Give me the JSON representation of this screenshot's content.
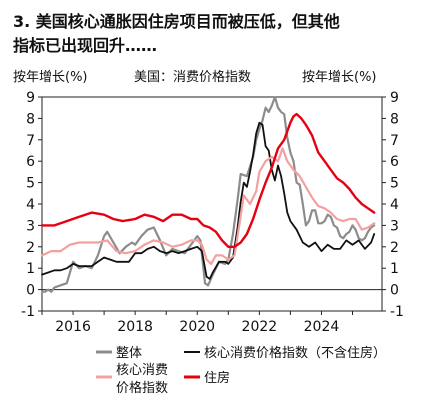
{
  "header": {
    "title_line1": "3. 美国核心通胀因住房项目而被压低，但其他",
    "title_line2": "指标已出现回升……"
  },
  "chart_data": {
    "type": "line",
    "left_axis_label": "按年增长(%)",
    "center_label": "美国：消费价格指数",
    "right_axis_label": "按年增长(%)",
    "xlim": [
      2015.0,
      2025.95
    ],
    "ylim": [
      -1,
      9
    ],
    "yticks": [
      -1,
      0,
      1,
      2,
      3,
      4,
      5,
      6,
      7,
      8,
      9
    ],
    "xticks": [
      2016,
      2018,
      2020,
      2022,
      2024
    ],
    "xtick_labels": [
      "2016",
      "2018",
      "2020",
      "2022",
      "2024"
    ],
    "ytick_labels": [
      "-1",
      "0",
      "1",
      "2",
      "3",
      "4",
      "5",
      "6",
      "7",
      "8",
      "9"
    ],
    "legend_position": "bottom",
    "series": [
      {
        "name": "整体",
        "color": "#8c8c8c",
        "x": [
          2015.0,
          2015.1,
          2015.2,
          2015.3,
          2015.4,
          2015.6,
          2015.8,
          2016.0,
          2016.2,
          2016.4,
          2016.6,
          2016.8,
          2017.0,
          2017.1,
          2017.3,
          2017.5,
          2017.7,
          2017.9,
          2018.0,
          2018.2,
          2018.4,
          2018.6,
          2018.8,
          2019.0,
          2019.2,
          2019.4,
          2019.6,
          2019.8,
          2020.0,
          2020.1,
          2020.25,
          2020.35,
          2020.5,
          2020.7,
          2020.9,
          2021.0,
          2021.15,
          2021.3,
          2021.4,
          2021.6,
          2021.8,
          2021.9,
          2022.0,
          2022.1,
          2022.2,
          2022.3,
          2022.4,
          2022.5,
          2022.6,
          2022.7,
          2022.8,
          2022.9,
          2023.0,
          2023.1,
          2023.2,
          2023.3,
          2023.4,
          2023.5,
          2023.6,
          2023.7,
          2023.8,
          2023.9,
          2024.0,
          2024.1,
          2024.2,
          2024.3,
          2024.4,
          2024.5,
          2024.6,
          2024.7,
          2024.8,
          2024.9,
          2025.0,
          2025.1,
          2025.2,
          2025.3,
          2025.4,
          2025.5,
          2025.6,
          2025.7
        ],
        "values": [
          -0.1,
          -0.1,
          0.0,
          -0.1,
          0.1,
          0.2,
          0.3,
          1.3,
          1.0,
          1.1,
          1.0,
          1.6,
          2.5,
          2.7,
          2.2,
          1.7,
          2.0,
          2.2,
          2.1,
          2.5,
          2.8,
          2.9,
          2.3,
          1.6,
          1.9,
          1.8,
          1.7,
          2.1,
          2.5,
          2.3,
          0.3,
          0.2,
          0.7,
          1.3,
          1.2,
          1.4,
          2.6,
          4.2,
          5.4,
          5.3,
          6.2,
          7.0,
          7.5,
          7.9,
          8.5,
          8.3,
          8.6,
          9.0,
          8.5,
          8.3,
          8.2,
          7.1,
          6.4,
          6.0,
          5.0,
          4.9,
          4.0,
          3.0,
          3.2,
          3.7,
          3.7,
          3.1,
          3.1,
          3.2,
          3.5,
          3.4,
          3.0,
          2.9,
          2.5,
          2.4,
          2.6,
          2.7,
          3.0,
          2.8,
          2.4,
          2.3,
          2.4,
          2.7,
          2.9,
          3.0
        ]
      },
      {
        "name": "核心消费价格指数（不含住房）",
        "color": "#111111",
        "x": [
          2015.0,
          2015.2,
          2015.4,
          2015.6,
          2015.8,
          2016.0,
          2016.2,
          2016.4,
          2016.6,
          2016.8,
          2017.0,
          2017.2,
          2017.4,
          2017.6,
          2017.8,
          2018.0,
          2018.2,
          2018.4,
          2018.6,
          2018.8,
          2019.0,
          2019.2,
          2019.4,
          2019.6,
          2019.8,
          2020.0,
          2020.15,
          2020.3,
          2020.4,
          2020.5,
          2020.7,
          2020.9,
          2021.0,
          2021.15,
          2021.3,
          2021.4,
          2021.5,
          2021.6,
          2021.7,
          2021.8,
          2021.9,
          2022.0,
          2022.1,
          2022.2,
          2022.3,
          2022.4,
          2022.5,
          2022.6,
          2022.7,
          2022.8,
          2022.9,
          2023.0,
          2023.2,
          2023.4,
          2023.6,
          2023.8,
          2024.0,
          2024.2,
          2024.4,
          2024.6,
          2024.8,
          2025.0,
          2025.2,
          2025.4,
          2025.6,
          2025.7
        ],
        "values": [
          0.7,
          0.8,
          0.9,
          0.9,
          1.0,
          1.2,
          1.1,
          1.1,
          1.1,
          1.3,
          1.5,
          1.4,
          1.3,
          1.3,
          1.3,
          1.7,
          1.7,
          1.9,
          2.0,
          1.8,
          1.7,
          1.8,
          1.7,
          1.8,
          1.9,
          2.0,
          1.8,
          0.6,
          0.5,
          0.8,
          1.3,
          1.3,
          1.2,
          1.5,
          2.9,
          4.1,
          5.0,
          4.8,
          5.5,
          6.3,
          7.3,
          7.8,
          7.7,
          6.7,
          6.5,
          5.6,
          5.1,
          5.8,
          5.3,
          4.5,
          3.6,
          3.2,
          2.8,
          2.2,
          2.0,
          2.2,
          1.8,
          2.1,
          1.9,
          1.9,
          2.3,
          2.1,
          2.3,
          1.9,
          2.2,
          2.6
        ]
      },
      {
        "name": "核心消费价格指数",
        "color": "#f4a0a0",
        "x": [
          2015.0,
          2015.3,
          2015.6,
          2015.9,
          2016.2,
          2016.5,
          2016.8,
          2017.1,
          2017.4,
          2017.7,
          2018.0,
          2018.3,
          2018.6,
          2018.9,
          2019.2,
          2019.5,
          2019.8,
          2020.0,
          2020.15,
          2020.3,
          2020.45,
          2020.6,
          2020.8,
          2021.0,
          2021.2,
          2021.35,
          2021.5,
          2021.7,
          2021.9,
          2022.0,
          2022.2,
          2022.4,
          2022.6,
          2022.75,
          2022.9,
          2023.1,
          2023.3,
          2023.5,
          2023.7,
          2023.9,
          2024.1,
          2024.3,
          2024.5,
          2024.7,
          2024.9,
          2025.1,
          2025.3,
          2025.5,
          2025.7
        ],
        "values": [
          1.6,
          1.8,
          1.8,
          2.1,
          2.2,
          2.2,
          2.2,
          2.3,
          1.8,
          1.7,
          1.8,
          2.1,
          2.3,
          2.2,
          2.0,
          2.1,
          2.3,
          2.3,
          2.1,
          1.4,
          1.2,
          1.6,
          1.6,
          1.4,
          1.6,
          3.0,
          4.4,
          4.0,
          4.6,
          5.5,
          6.0,
          6.2,
          6.0,
          6.6,
          6.0,
          5.6,
          5.3,
          4.8,
          4.3,
          3.9,
          3.8,
          3.6,
          3.3,
          3.2,
          3.3,
          3.3,
          2.8,
          2.9,
          3.1
        ]
      },
      {
        "name": "住房",
        "color": "#e60012",
        "x": [
          2015.0,
          2015.4,
          2015.8,
          2016.2,
          2016.6,
          2017.0,
          2017.3,
          2017.6,
          2018.0,
          2018.3,
          2018.6,
          2018.9,
          2019.2,
          2019.5,
          2019.8,
          2020.0,
          2020.2,
          2020.4,
          2020.6,
          2020.8,
          2021.0,
          2021.2,
          2021.4,
          2021.6,
          2021.8,
          2022.0,
          2022.2,
          2022.4,
          2022.6,
          2022.8,
          2023.0,
          2023.1,
          2023.2,
          2023.35,
          2023.5,
          2023.7,
          2023.9,
          2024.1,
          2024.3,
          2024.5,
          2024.7,
          2024.9,
          2025.1,
          2025.3,
          2025.5,
          2025.7
        ],
        "values": [
          3.0,
          3.0,
          3.2,
          3.4,
          3.6,
          3.5,
          3.3,
          3.2,
          3.3,
          3.5,
          3.4,
          3.2,
          3.5,
          3.5,
          3.3,
          3.3,
          3.0,
          2.9,
          2.7,
          2.3,
          2.0,
          2.0,
          2.2,
          2.6,
          3.3,
          4.2,
          5.0,
          5.7,
          6.6,
          7.0,
          7.8,
          8.1,
          8.2,
          8.0,
          7.7,
          7.2,
          6.4,
          6.0,
          5.6,
          5.2,
          5.0,
          4.7,
          4.3,
          4.0,
          3.8,
          3.6
        ]
      }
    ]
  },
  "legend": {
    "items": [
      {
        "label": "整体",
        "color": "#8c8c8c"
      },
      {
        "label": "核心消费价格指数（不含住房）",
        "color": "#111111"
      },
      {
        "label_line1": "核心消费",
        "label_line2": "价格指数",
        "color": "#f4a0a0"
      },
      {
        "label": "住房",
        "color": "#e60012"
      }
    ]
  }
}
